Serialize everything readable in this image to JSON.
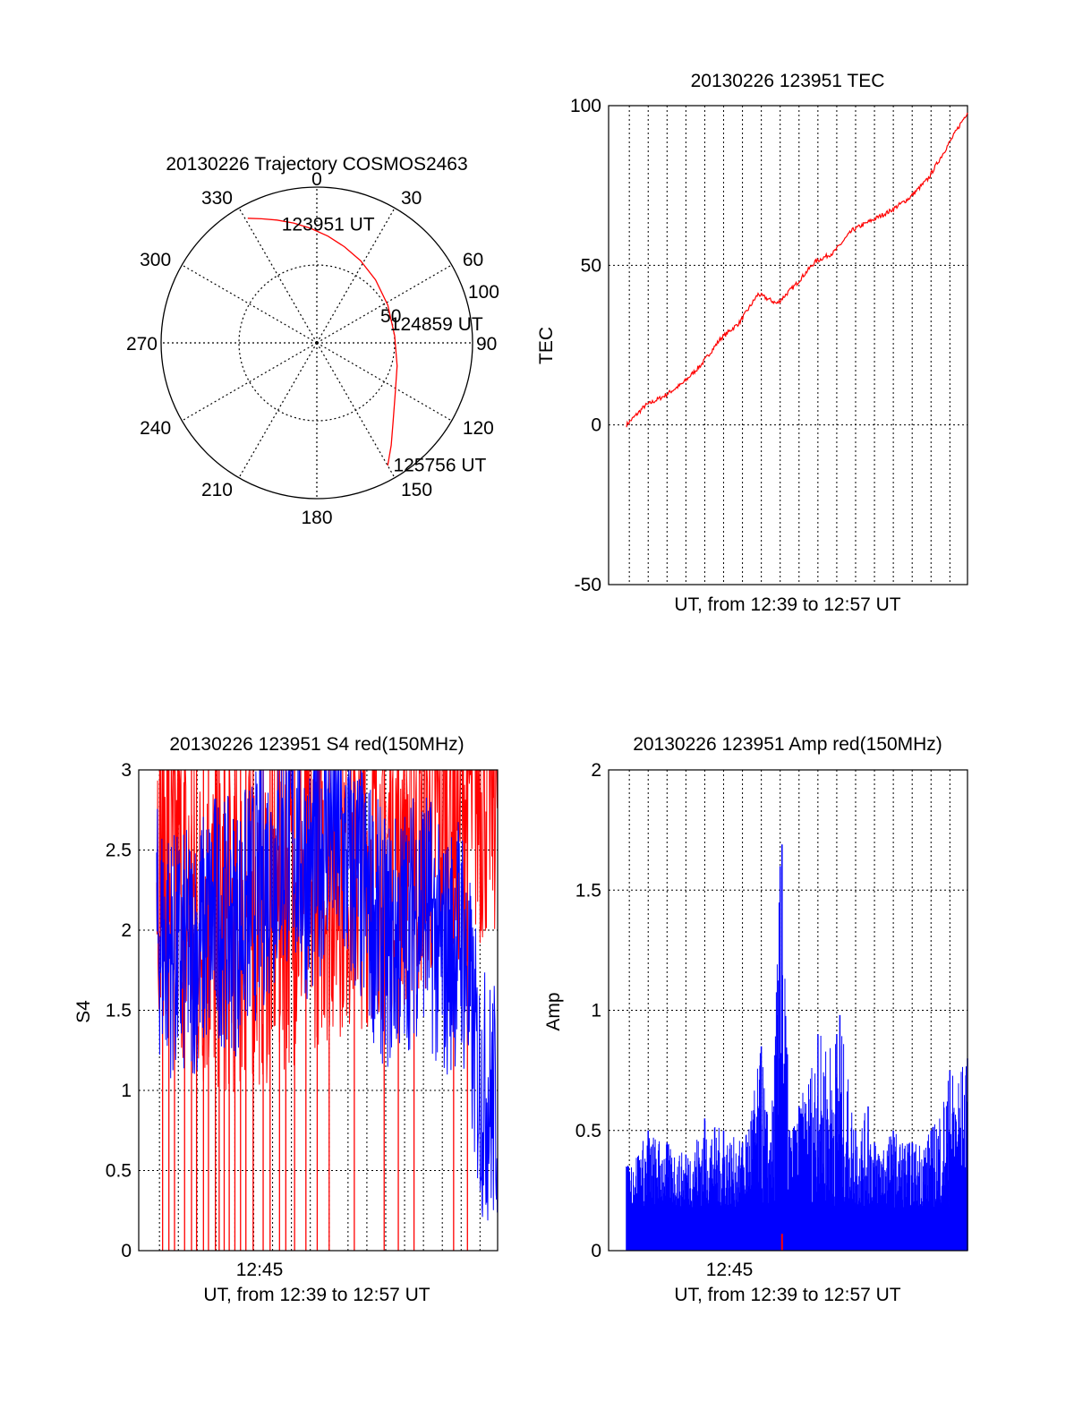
{
  "colors": {
    "red": "#ff0000",
    "blue": "#0000ff",
    "axis": "#000000",
    "grid": "#000000"
  },
  "chart_data": [
    {
      "type": "polar",
      "title": "20130226 Trajectory COSMOS2463",
      "angle_ticks": [
        "0",
        "30",
        "60",
        "90",
        "120",
        "150",
        "180",
        "210",
        "240",
        "270",
        "300",
        "330"
      ],
      "radial_labels": [
        "50",
        "100"
      ],
      "rlim": [
        0,
        100
      ],
      "grid": true,
      "trajectory": {
        "azimuth_deg": [
          331,
          336,
          342,
          349,
          357,
          6,
          16,
          28,
          43,
          62,
          85,
          106,
          124,
          136,
          144,
          150
        ],
        "radius": [
          91.5,
          87.2,
          82.9,
          78.4,
          73.6,
          68.9,
          64.2,
          59.8,
          55.3,
          51.6,
          50.2,
          53.6,
          60.6,
          70.5,
          81.3,
          91.0
        ]
      },
      "annotations": [
        {
          "text": "123951 UT",
          "azimuth_deg": 346,
          "radius": 79
        },
        {
          "text": "124859 UT",
          "azimuth_deg": 76,
          "radius": 52
        },
        {
          "text": "125756 UT",
          "azimuth_deg": 146,
          "radius": 94
        }
      ]
    },
    {
      "type": "line",
      "title": "20130226 123951 TEC",
      "xlabel": "UT, from 12:39 to 12:57 UT",
      "ylabel": "TEC",
      "xlim": [
        "12:39:51",
        "12:57:56"
      ],
      "ylim": [
        -50,
        100
      ],
      "yticks": [
        "-50",
        "0",
        "50",
        "100"
      ],
      "grid": true,
      "series": [
        {
          "color": "#ff0000",
          "x": [
            "12:39:51",
            "12:40:50",
            "12:41:50",
            "12:42:50",
            "12:43:50",
            "12:44:50",
            "12:45:50",
            "12:46:50",
            "12:47:50",
            "12:48:50",
            "12:49:50",
            "12:50:50",
            "12:51:50",
            "12:52:50",
            "12:53:50",
            "12:54:50",
            "12:55:50",
            "12:56:50",
            "12:57:56"
          ],
          "values": [
            0,
            6,
            9,
            13,
            19,
            27,
            32,
            41,
            38,
            44,
            51,
            54,
            61,
            64,
            67,
            71,
            77,
            87,
            98
          ]
        }
      ]
    },
    {
      "type": "line",
      "title": "20130226 123951 S4 red(150MHz)",
      "xlabel": "UT, from 12:39 to 12:57 UT",
      "ylabel": "S4",
      "xtick_labels": [
        "12:45"
      ],
      "ylim": [
        0,
        3
      ],
      "yticks": [
        "0",
        "0.5",
        "1",
        "1.5",
        "2",
        "2.5",
        "3"
      ],
      "grid": true,
      "series": [
        {
          "color": "#ff0000",
          "x": [
            "12:39:51",
            "12:42:00",
            "12:44:00",
            "12:46:00",
            "12:48:00",
            "12:50:00",
            "12:52:00",
            "12:54:00",
            "12:56:00",
            "12:57:56"
          ],
          "values": [
            2.2,
            1.6,
            1.6,
            1.7,
            1.9,
            2.0,
            2.1,
            2.2,
            2.4,
            2.6
          ],
          "dropouts_to_zero": [
            "12:40:10",
            "12:40:30",
            "12:40:48",
            "12:41:20",
            "12:41:42",
            "12:41:58",
            "12:42:20",
            "12:42:36",
            "12:42:58",
            "12:43:10",
            "12:43:26",
            "12:43:42",
            "12:44:00",
            "12:44:18",
            "12:44:35",
            "12:44:58",
            "12:45:30",
            "12:45:52",
            "12:46:22",
            "12:46:42",
            "12:47:10",
            "12:47:46",
            "12:48:22",
            "12:49:00",
            "12:50:20",
            "12:51:55",
            "12:52:40",
            "12:53:30",
            "12:55:36",
            "12:56:20"
          ]
        },
        {
          "color": "#0000ff",
          "x": [
            "12:39:51",
            "12:41:00",
            "12:42:00",
            "12:43:00",
            "12:44:00",
            "12:45:00",
            "12:46:00",
            "12:47:00",
            "12:48:00",
            "12:49:00",
            "12:50:00",
            "12:51:00",
            "12:52:00",
            "12:53:00",
            "12:54:00",
            "12:55:00",
            "12:56:00",
            "12:57:00",
            "12:57:56"
          ],
          "values": [
            2.0,
            1.8,
            1.9,
            2.1,
            2.0,
            2.2,
            2.4,
            2.6,
            2.3,
            2.7,
            2.4,
            2.2,
            1.9,
            2.0,
            2.2,
            1.8,
            2.0,
            1.0,
            0.9
          ]
        }
      ]
    },
    {
      "type": "bar",
      "title": "20130226 123951 Amp red(150MHz)",
      "xlabel": "UT, from 12:39 to 12:57 UT",
      "ylabel": "Amp",
      "xtick_labels": [
        "12:45"
      ],
      "ylim": [
        0,
        2
      ],
      "yticks": [
        "0",
        "0.5",
        "1",
        "1.5",
        "2"
      ],
      "grid": true,
      "series": [
        {
          "color": "#0000ff",
          "x": [
            "12:39:51",
            "12:41:00",
            "12:42:00",
            "12:43:00",
            "12:44:00",
            "12:45:00",
            "12:46:00",
            "12:47:00",
            "12:47:30",
            "12:48:00",
            "12:48:06",
            "12:48:30",
            "12:49:00",
            "12:50:00",
            "12:51:00",
            "12:51:10",
            "12:52:00",
            "12:52:40",
            "12:53:00",
            "12:54:00",
            "12:55:00",
            "12:56:00",
            "12:57:00",
            "12:57:56"
          ],
          "values": [
            0.35,
            0.5,
            0.45,
            0.4,
            0.55,
            0.5,
            0.45,
            0.85,
            0.45,
            1.6,
            1.69,
            0.5,
            0.6,
            0.9,
            0.9,
            0.98,
            0.5,
            0.6,
            0.45,
            0.5,
            0.45,
            0.5,
            0.75,
            0.8
          ]
        },
        {
          "color": "#ff0000",
          "x": [
            "12:48:06"
          ],
          "values": [
            0.07
          ]
        }
      ]
    }
  ]
}
